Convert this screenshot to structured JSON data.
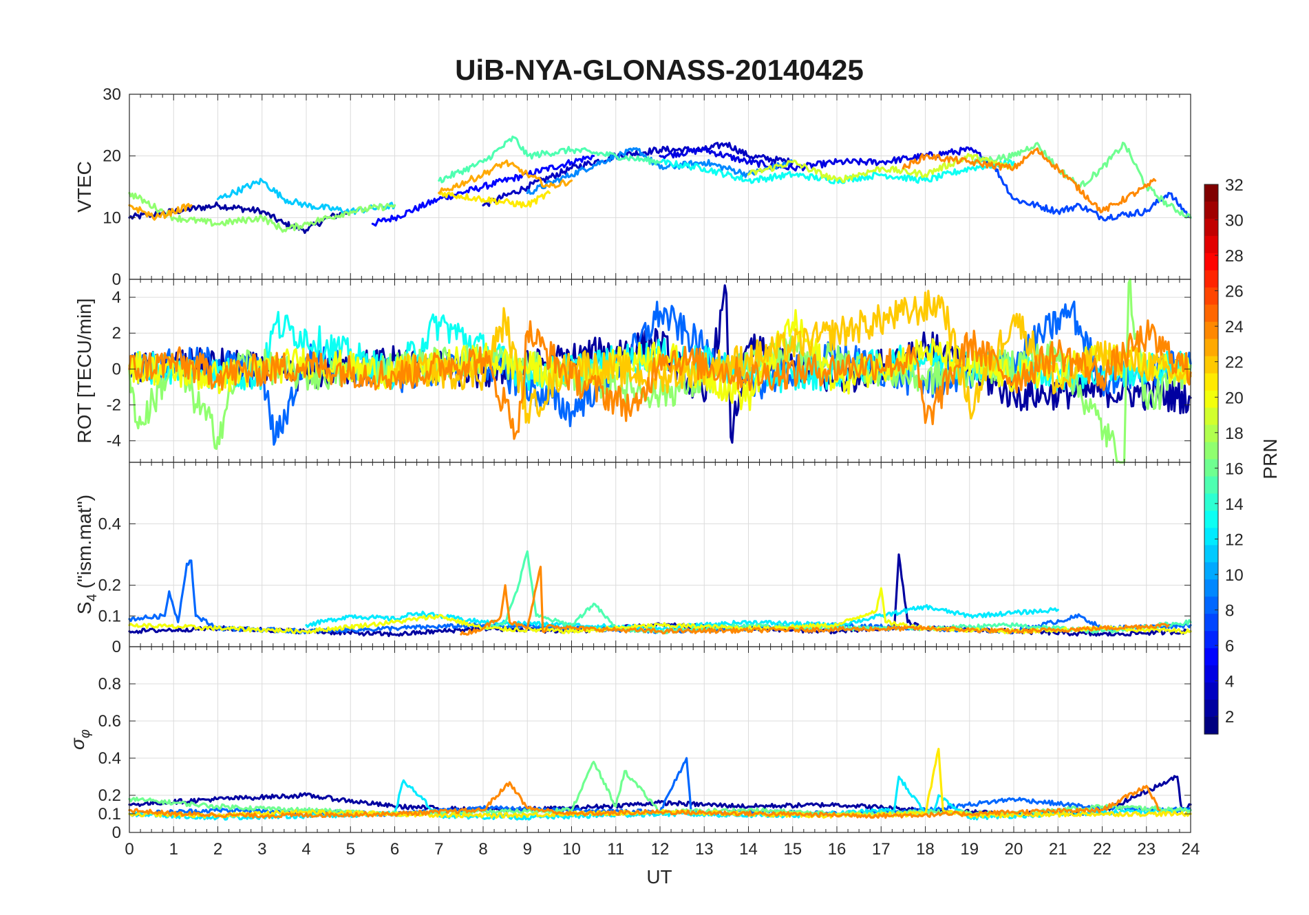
{
  "figure": {
    "title": "UiB-NYA-GLONASS-20140425"
  },
  "colorbar": {
    "label": "PRN",
    "ticks": [
      "2",
      "4",
      "6",
      "8",
      "10",
      "12",
      "14",
      "16",
      "18",
      "20",
      "22",
      "24",
      "26",
      "28",
      "30",
      "32"
    ],
    "range": [
      1,
      32
    ],
    "colormap": "jet"
  },
  "chart_data": [
    {
      "type": "line",
      "panel": "vtec",
      "ylabel": "VTEC",
      "ylim": [
        0,
        30
      ],
      "yticks": [
        "0",
        "10",
        "20",
        "30"
      ],
      "xlim": [
        0,
        24
      ],
      "grid": true,
      "series": [
        {
          "prn": 2,
          "x": [
            0,
            1,
            2,
            3,
            3.5,
            4,
            4.5,
            5
          ],
          "y": [
            10,
            11,
            12,
            11,
            9,
            8,
            10,
            11
          ]
        },
        {
          "prn": 5,
          "x": [
            5.5,
            6,
            7,
            8,
            9,
            10,
            10.5
          ],
          "y": [
            9,
            10,
            13,
            15,
            17,
            19,
            20
          ]
        },
        {
          "prn": 3,
          "x": [
            8,
            9,
            10,
            11,
            12,
            13,
            13.5,
            14,
            15
          ],
          "y": [
            12,
            15,
            18,
            20,
            21,
            21,
            22,
            20,
            19
          ]
        },
        {
          "prn": 4,
          "x": [
            12,
            13,
            14,
            15,
            16,
            17,
            18,
            19,
            19.5
          ],
          "y": [
            20,
            21,
            19,
            18,
            19,
            19,
            20,
            21,
            19
          ]
        },
        {
          "prn": 7,
          "x": [
            19.5,
            20,
            21,
            21.5,
            22,
            23,
            23.5,
            24
          ],
          "y": [
            19,
            13,
            11,
            12,
            10,
            11,
            14,
            10
          ]
        },
        {
          "prn": 9,
          "x": [
            9,
            10,
            11,
            11.5,
            12,
            13,
            14,
            15
          ],
          "y": [
            14,
            17,
            20,
            21,
            18,
            19,
            17,
            19
          ]
        },
        {
          "prn": 11,
          "x": [
            2,
            3,
            3.5,
            4,
            5,
            6
          ],
          "y": [
            13,
            16,
            13,
            12,
            11,
            12
          ]
        },
        {
          "prn": 13,
          "x": [
            12,
            13,
            14,
            15,
            16,
            17,
            18,
            19,
            20
          ],
          "y": [
            19,
            18,
            16,
            17,
            16,
            17,
            16,
            18,
            19
          ]
        },
        {
          "prn": 15,
          "x": [
            7,
            8,
            8.7,
            9,
            10,
            11,
            12
          ],
          "y": [
            16,
            19,
            23,
            20,
            21,
            20,
            19
          ]
        },
        {
          "prn": 16,
          "x": [
            19,
            20,
            20.5,
            21,
            21.5,
            22,
            22.5,
            23,
            23.5,
            24
          ],
          "y": [
            19,
            20,
            22,
            18,
            15,
            18,
            22,
            15,
            12,
            10
          ]
        },
        {
          "prn": 17,
          "x": [
            0,
            1,
            2,
            3,
            3.5,
            4,
            5,
            6
          ],
          "y": [
            14,
            10,
            9,
            10,
            8,
            9,
            11,
            12
          ]
        },
        {
          "prn": 19,
          "x": [
            14,
            15,
            16,
            17,
            18,
            19,
            20
          ],
          "y": [
            17,
            19,
            16,
            18,
            17,
            20,
            18
          ]
        },
        {
          "prn": 21,
          "x": [
            7,
            8,
            9,
            9.5
          ],
          "y": [
            14,
            13,
            12,
            14
          ]
        },
        {
          "prn": 23,
          "x": [
            7,
            8,
            8.5,
            9,
            9.5,
            10
          ],
          "y": [
            14,
            17,
            19,
            17,
            15,
            16
          ]
        },
        {
          "prn": 24,
          "x": [
            17.5,
            18,
            19,
            20,
            20.5,
            21,
            22,
            23,
            23.2
          ],
          "y": [
            18,
            20,
            19,
            18,
            21,
            18,
            11,
            15,
            16
          ]
        },
        {
          "prn": 23,
          "x": [
            0,
            0.3,
            0.6,
            1,
            1.4
          ],
          "y": [
            12,
            11,
            10,
            11,
            12
          ]
        }
      ]
    },
    {
      "type": "line",
      "panel": "rot",
      "ylabel": "ROT [TECU/min]",
      "ylim": [
        -5.2,
        5
      ],
      "yticks": [
        "-4",
        "-2",
        "0",
        "2",
        "4"
      ],
      "xlim": [
        0,
        24
      ],
      "grid": true,
      "series": [
        {
          "prn": 2,
          "x": [
            0,
            2,
            4,
            6,
            8,
            10,
            12,
            13,
            13.5,
            13.6,
            14,
            16,
            18,
            20,
            22,
            24
          ],
          "y": [
            0,
            0.3,
            -0.4,
            0.5,
            -0.3,
            0.6,
            1.5,
            -1.8,
            4.2,
            -3.8,
            1.2,
            -0.8,
            1.4,
            -1.5,
            -1.2,
            -1.6
          ]
        },
        {
          "prn": 8,
          "x": [
            0,
            2,
            3,
            3.3,
            4,
            6,
            8,
            10,
            11.5,
            12,
            14,
            16,
            18,
            20,
            21.3,
            22,
            24
          ],
          "y": [
            0,
            0.4,
            -0.3,
            -4.0,
            0.6,
            -0.5,
            0.4,
            -2.4,
            1.3,
            3.2,
            -1.0,
            0.8,
            -0.9,
            0.5,
            3.3,
            -0.6,
            0.3
          ]
        },
        {
          "prn": 13,
          "x": [
            0,
            3,
            3.3,
            6,
            7,
            9,
            12,
            15,
            18,
            21,
            24
          ],
          "y": [
            0.2,
            -0.4,
            2.5,
            -0.3,
            2.6,
            -0.4,
            0.8,
            -0.5,
            0.6,
            -0.4,
            0.2
          ]
        },
        {
          "prn": 17,
          "x": [
            0,
            0.2,
            1,
            2,
            2.5,
            4,
            8,
            12,
            15,
            18,
            21,
            22.5,
            22.6,
            23,
            24
          ],
          "y": [
            0,
            -3.3,
            0.3,
            -3.8,
            0.5,
            -0.4,
            0.6,
            -1.4,
            1.0,
            -0.6,
            0.8,
            -5.3,
            4.8,
            -2.0,
            0.2
          ]
        },
        {
          "prn": 20,
          "x": [
            0,
            2,
            4,
            6,
            8,
            10,
            12,
            14,
            15,
            16,
            18,
            20,
            22,
            24
          ],
          "y": [
            0.2,
            -0.5,
            0.4,
            -0.3,
            0.6,
            -0.4,
            0.9,
            -1.6,
            2.6,
            -0.7,
            1.0,
            -0.5,
            0.6,
            -0.2
          ]
        },
        {
          "prn": 22,
          "x": [
            6,
            8,
            8.5,
            9,
            10,
            12,
            14,
            18.4,
            19,
            20,
            21,
            22,
            24
          ],
          "y": [
            0,
            -0.3,
            2.8,
            -2.5,
            0.4,
            -0.5,
            0.6,
            3.7,
            -2.2,
            3.0,
            -1.0,
            0.8,
            -0.4
          ]
        },
        {
          "prn": 24,
          "x": [
            0,
            1,
            2,
            4,
            6,
            8,
            8.8,
            9,
            10,
            11.5,
            12,
            14,
            17.8,
            18,
            19,
            20,
            21,
            22,
            23,
            24
          ],
          "y": [
            0,
            0.4,
            -0.3,
            0.2,
            -0.4,
            0.6,
            -3.5,
            2.1,
            -0.5,
            -2.3,
            0.8,
            -0.4,
            0.5,
            -3.0,
            1.5,
            -0.6,
            0.9,
            -0.4,
            1.9,
            -0.2
          ]
        }
      ]
    },
    {
      "type": "line",
      "panel": "s4",
      "ylabel": "S4 (\"ism.mat\")",
      "ylim": [
        0,
        0.6
      ],
      "yticks": [
        "0",
        "0.1",
        "0.2",
        "0.4"
      ],
      "xlim": [
        0,
        24
      ],
      "grid": true,
      "series": [
        {
          "prn": 2,
          "x": [
            0,
            2,
            4,
            6,
            8,
            10,
            12,
            14,
            16,
            17.3,
            17.4,
            17.6,
            18,
            20,
            22,
            24
          ],
          "y": [
            0.05,
            0.06,
            0.05,
            0.04,
            0.06,
            0.05,
            0.07,
            0.06,
            0.05,
            0.06,
            0.3,
            0.08,
            0.06,
            0.05,
            0.04,
            0.05
          ]
        },
        {
          "prn": 8,
          "x": [
            0,
            0.8,
            0.9,
            1.1,
            1.3,
            1.4,
            1.5,
            2,
            4,
            6,
            8,
            10,
            12,
            14,
            16,
            18,
            20,
            21.5,
            22,
            24
          ],
          "y": [
            0.09,
            0.1,
            0.18,
            0.08,
            0.27,
            0.28,
            0.1,
            0.06,
            0.05,
            0.06,
            0.07,
            0.06,
            0.05,
            0.06,
            0.07,
            0.06,
            0.05,
            0.1,
            0.06,
            0.07
          ]
        },
        {
          "prn": 12,
          "x": [
            4,
            5,
            6,
            6.5,
            7,
            8,
            10,
            12,
            14,
            16,
            17,
            18,
            19,
            20,
            21
          ],
          "y": [
            0.07,
            0.1,
            0.09,
            0.11,
            0.1,
            0.08,
            0.07,
            0.06,
            0.08,
            0.07,
            0.1,
            0.13,
            0.1,
            0.11,
            0.12
          ]
        },
        {
          "prn": 15,
          "x": [
            8,
            8.5,
            8.8,
            9,
            9.2,
            10,
            10.5,
            11,
            12,
            14,
            16,
            18,
            20,
            22,
            24
          ],
          "y": [
            0.06,
            0.08,
            0.2,
            0.31,
            0.1,
            0.07,
            0.14,
            0.06,
            0.05,
            0.07,
            0.06,
            0.06,
            0.07,
            0.05,
            0.08
          ]
        },
        {
          "prn": 20,
          "x": [
            0,
            2,
            4,
            6,
            7,
            8,
            10,
            12,
            14,
            16,
            16.9,
            17,
            17.1,
            18,
            20,
            22,
            24
          ],
          "y": [
            0.07,
            0.06,
            0.05,
            0.08,
            0.1,
            0.06,
            0.05,
            0.07,
            0.06,
            0.07,
            0.12,
            0.19,
            0.08,
            0.06,
            0.05,
            0.06,
            0.05
          ]
        },
        {
          "prn": 24,
          "x": [
            7.5,
            8,
            8.4,
            8.5,
            8.6,
            9,
            9.3,
            9.35,
            9.5,
            10,
            12,
            18,
            20,
            22,
            23.5
          ],
          "y": [
            0.04,
            0.06,
            0.1,
            0.2,
            0.08,
            0.06,
            0.26,
            0.05,
            0.07,
            0.06,
            0.05,
            0.06,
            0.05,
            0.06,
            0.07
          ]
        }
      ]
    },
    {
      "type": "line",
      "panel": "sigma_phi",
      "ylabel": "σφ",
      "ylim": [
        0,
        1
      ],
      "yticks": [
        "0",
        "0.1",
        "0.2",
        "0.4",
        "0.6",
        "0.8"
      ],
      "xlabel": "UT",
      "xlim": [
        0,
        24
      ],
      "xticks": [
        "0",
        "1",
        "2",
        "3",
        "4",
        "5",
        "6",
        "7",
        "8",
        "9",
        "10",
        "11",
        "12",
        "13",
        "14",
        "15",
        "16",
        "17",
        "18",
        "19",
        "20",
        "21",
        "22",
        "23",
        "24"
      ],
      "grid": true,
      "series": [
        {
          "prn": 2,
          "x": [
            0,
            2,
            4,
            6,
            8,
            10,
            12,
            14,
            16,
            18,
            20,
            22,
            23.7,
            23.8,
            24
          ],
          "y": [
            0.15,
            0.18,
            0.2,
            0.14,
            0.12,
            0.13,
            0.16,
            0.14,
            0.15,
            0.12,
            0.1,
            0.11,
            0.3,
            0.12,
            0.15
          ]
        },
        {
          "prn": 8,
          "x": [
            0,
            2,
            4,
            6,
            8,
            10,
            12,
            12.6,
            12.7,
            13,
            14,
            16,
            18,
            20,
            22,
            24
          ],
          "y": [
            0.1,
            0.12,
            0.11,
            0.1,
            0.13,
            0.12,
            0.11,
            0.4,
            0.12,
            0.1,
            0.11,
            0.1,
            0.12,
            0.18,
            0.13,
            0.12
          ]
        },
        {
          "prn": 12,
          "x": [
            0,
            2,
            4,
            6,
            6.2,
            7,
            9,
            12,
            15,
            17.3,
            17.4,
            18,
            18.2,
            18.3,
            19,
            21,
            24
          ],
          "y": [
            0.1,
            0.08,
            0.09,
            0.1,
            0.28,
            0.09,
            0.08,
            0.1,
            0.09,
            0.12,
            0.3,
            0.1,
            0.12,
            0.2,
            0.08,
            0.1,
            0.12
          ]
        },
        {
          "prn": 16,
          "x": [
            0,
            2,
            4,
            6,
            8,
            10,
            10.5,
            11,
            11.2,
            12,
            14,
            16,
            18,
            20,
            22,
            24
          ],
          "y": [
            0.18,
            0.14,
            0.12,
            0.1,
            0.11,
            0.12,
            0.38,
            0.14,
            0.33,
            0.11,
            0.12,
            0.1,
            0.11,
            0.1,
            0.14,
            0.12
          ]
        },
        {
          "prn": 21,
          "x": [
            0,
            2,
            4,
            6,
            8,
            10,
            12,
            14,
            16,
            18,
            18.3,
            18.4,
            19,
            22,
            24
          ],
          "y": [
            0.1,
            0.09,
            0.11,
            0.1,
            0.09,
            0.1,
            0.11,
            0.1,
            0.09,
            0.1,
            0.45,
            0.12,
            0.09,
            0.1,
            0.1
          ]
        },
        {
          "prn": 24,
          "x": [
            0,
            1,
            3,
            6,
            8,
            8.6,
            9,
            10,
            12,
            17,
            19,
            20,
            22,
            23,
            23.3
          ],
          "y": [
            0.12,
            0.1,
            0.09,
            0.1,
            0.12,
            0.27,
            0.13,
            0.1,
            0.11,
            0.09,
            0.1,
            0.11,
            0.12,
            0.25,
            0.12
          ]
        }
      ]
    }
  ]
}
